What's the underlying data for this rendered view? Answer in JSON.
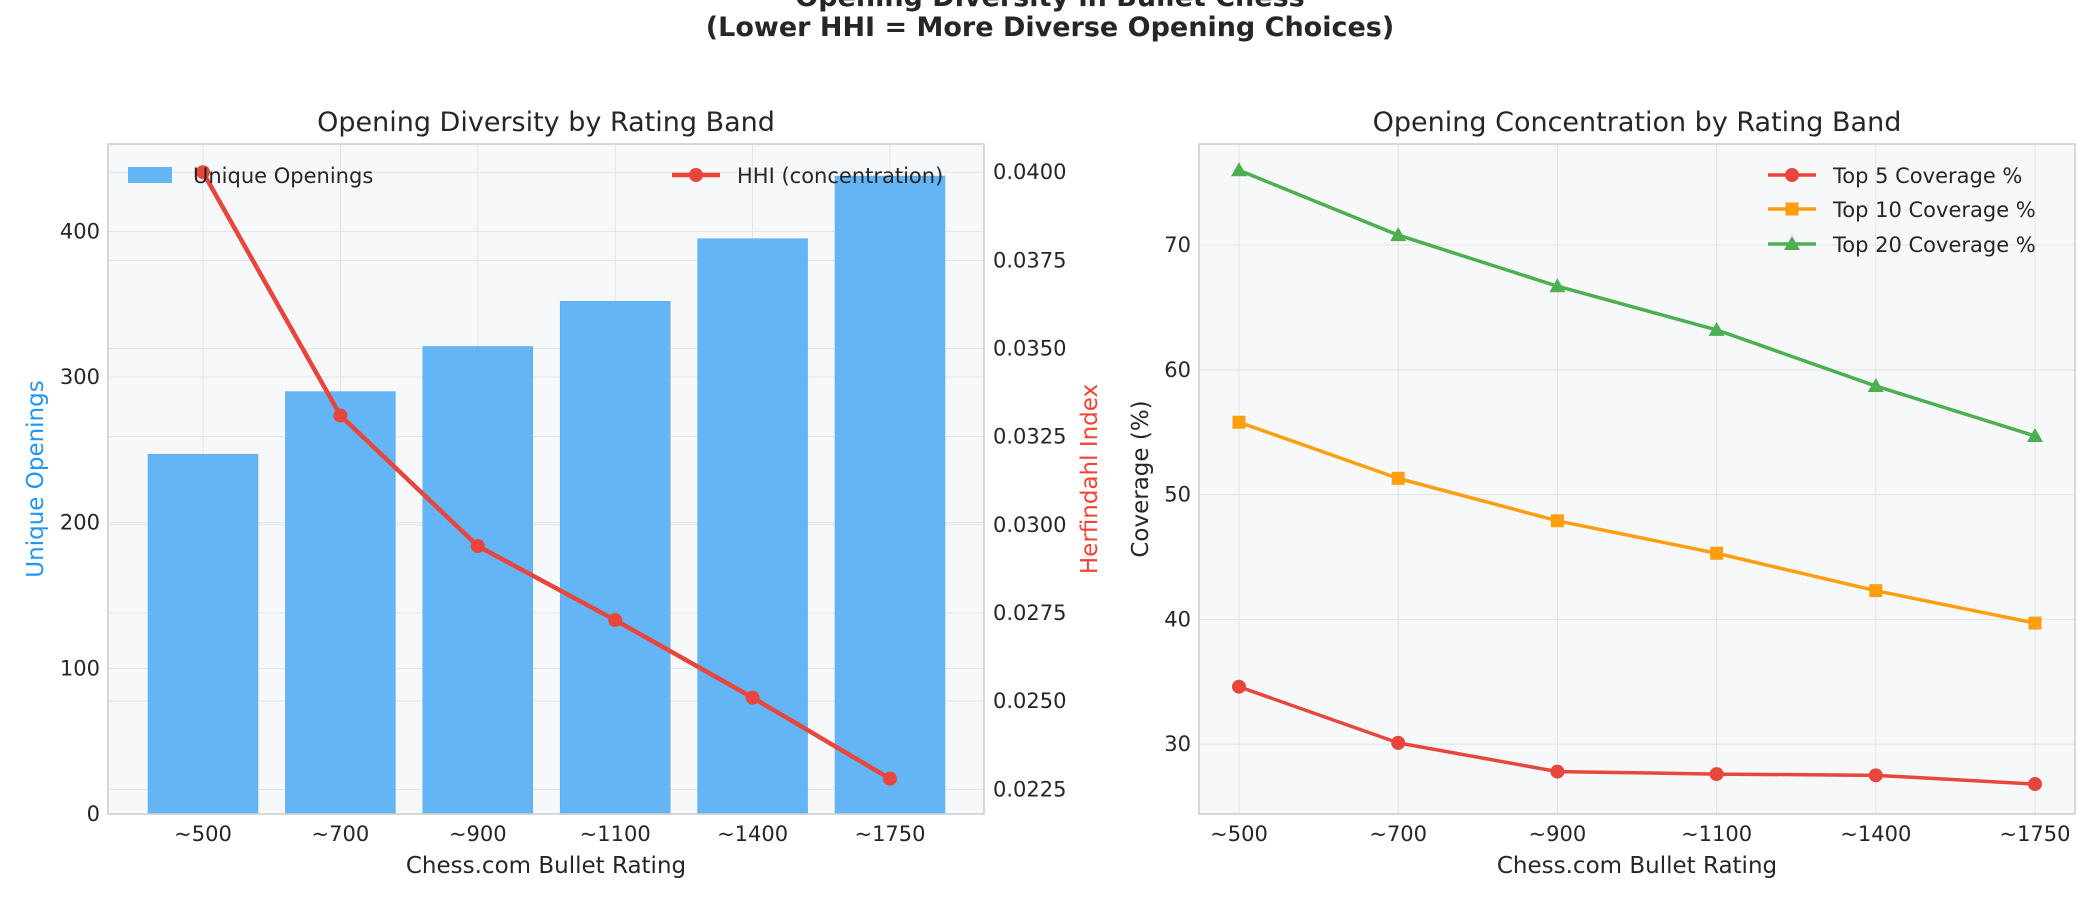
{
  "figure": {
    "title_line1": "Opening Diversity in Bullet Chess",
    "title_line2": "(Lower HHI = More Diverse Opening Choices)"
  },
  "colors": {
    "bar": "#64b5f6",
    "hhi_line": "#e8453c",
    "top5": "#e8453c",
    "top10": "#ff9f0f",
    "top20": "#4caf50",
    "plot_bg": "#f7f8fa",
    "grid": "#e3e3e3",
    "left_axis_label": "#2196f3",
    "right_axis_label": "#f44336"
  },
  "chart_data": [
    {
      "type": "bar",
      "title": "Opening Diversity by Rating Band",
      "xlabel": "Chess.com Bullet Rating",
      "ylabel": "Unique Openings",
      "y2label": "Herfindahl Index",
      "categories": [
        "~500",
        "~700",
        "~900",
        "~1100",
        "~1400",
        "~1750"
      ],
      "series": [
        {
          "name": "Unique Openings",
          "kind": "bar",
          "axis": "left",
          "values": [
            247,
            290,
            321,
            352,
            395,
            438
          ]
        },
        {
          "name": "HHI (concentration)",
          "kind": "line",
          "axis": "right",
          "values": [
            0.04,
            0.0331,
            0.0294,
            0.0273,
            0.0251,
            0.0228
          ]
        }
      ],
      "ylim": [
        0,
        460
      ],
      "yticks": [
        0,
        100,
        200,
        300,
        400
      ],
      "y2lim": [
        0.0218,
        0.0408
      ],
      "y2ticks": [
        "0.0225",
        "0.0250",
        "0.0275",
        "0.0300",
        "0.0325",
        "0.0350",
        "0.0375",
        "0.0400"
      ],
      "grid": true,
      "legend": {
        "left": "upper-left",
        "right": "upper-right"
      }
    },
    {
      "type": "line",
      "title": "Opening Concentration by Rating Band",
      "xlabel": "Chess.com Bullet Rating",
      "ylabel": "Coverage (%)",
      "categories": [
        "~500",
        "~700",
        "~900",
        "~1100",
        "~1400",
        "~1750"
      ],
      "series": [
        {
          "name": "Top 5 Coverage %",
          "marker": "circle",
          "values": [
            34.6,
            30.1,
            27.8,
            27.6,
            27.5,
            26.8
          ]
        },
        {
          "name": "Top 10 Coverage %",
          "marker": "square",
          "values": [
            55.8,
            51.3,
            47.9,
            45.3,
            42.3,
            39.7
          ]
        },
        {
          "name": "Top 20 Coverage %",
          "marker": "triangle",
          "values": [
            76.0,
            70.8,
            66.7,
            63.2,
            58.7,
            54.7
          ]
        }
      ],
      "ylim": [
        24.4,
        78.1
      ],
      "yticks": [
        30,
        40,
        50,
        60,
        70
      ],
      "grid": true,
      "legend": "upper-right"
    }
  ]
}
